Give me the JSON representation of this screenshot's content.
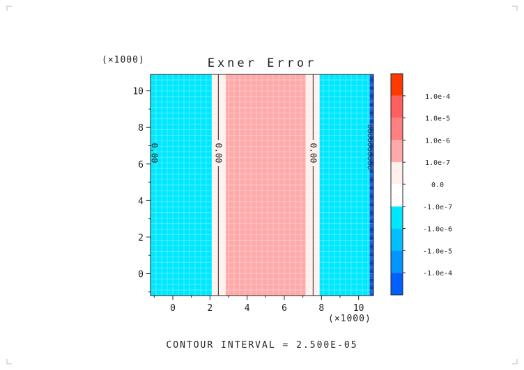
{
  "chart_data": {
    "type": "heatmap",
    "title": "Exner Error",
    "x_scale_label": "(×1000)",
    "y_scale_label": "(×1000)",
    "xlim": [
      -1.2,
      10.8
    ],
    "ylim": [
      -1.2,
      10.9
    ],
    "xticks": [
      0,
      2,
      4,
      6,
      8,
      10
    ],
    "yticks": [
      0,
      2,
      4,
      6,
      8,
      10
    ],
    "grid": true,
    "bands": [
      {
        "x0": -1.2,
        "x1": 2.1,
        "level": "cyan"
      },
      {
        "x0": 2.1,
        "x1": 2.85,
        "level": "white"
      },
      {
        "x0": 2.85,
        "x1": 7.15,
        "level": "pink"
      },
      {
        "x0": 7.15,
        "x1": 7.9,
        "level": "white"
      },
      {
        "x0": 7.9,
        "x1": 10.6,
        "level": "cyan"
      },
      {
        "x0": 10.6,
        "x1": 10.8,
        "level": "blue"
      }
    ],
    "contour_labels": [
      {
        "text": "0.00",
        "x": -1.0
      },
      {
        "text": "0.00",
        "x": 2.45
      },
      {
        "text": "0.00",
        "x": 7.55
      }
    ],
    "colorbar": {
      "position": "right",
      "colors": [
        "#ff3a00",
        "#ff5f5f",
        "#ff8080",
        "#ffaaaa",
        "#fff0ee",
        "#ffffff",
        "#00e8ff",
        "#00c0ff",
        "#0096ff",
        "#0060ff"
      ],
      "boundary_labels": [
        "1.0e-4",
        "1.0e-5",
        "1.0e-6",
        "1.0e-7",
        "0.0",
        "-1.0e-7",
        "-1.0e-6",
        "-1.0e-5",
        "-1.0e-4"
      ]
    },
    "level_colors": {
      "cyan": "#00e8ff",
      "white": "#fff0ee",
      "pink": "#ffaaaa",
      "blue": "#1450d8"
    },
    "footer": "CONTOUR INTERVAL = 2.500E-05"
  }
}
